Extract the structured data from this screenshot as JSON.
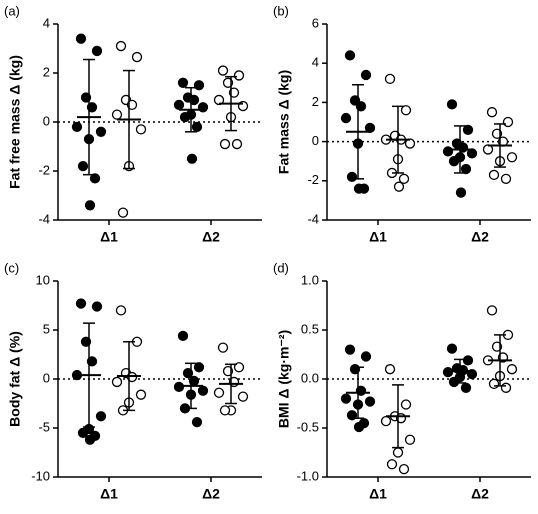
{
  "chart_data": [
    {
      "type": "dot",
      "panel_label": "(a)",
      "y_label": "Fat free mass Δ (kg)",
      "categories": [
        "Δ1",
        "Δ2"
      ],
      "ylim": [
        -4,
        4
      ],
      "yticks": [
        -4,
        -2,
        0,
        2,
        4
      ],
      "reference_line": 0,
      "series": [
        {
          "fill": "#000000",
          "values": [
            [
              3.4,
              2.9,
              1.0,
              0.6,
              -0.2,
              -0.4,
              -0.7,
              -1.8,
              -2.3,
              -3.4
            ],
            [
              1.6,
              1.5,
              1.0,
              0.9,
              0.7,
              0.6,
              0.3,
              0.2,
              -0.2,
              -1.5
            ]
          ],
          "mean": [
            0.2,
            0.5
          ],
          "sd": [
            2.35,
            0.9
          ]
        },
        {
          "fill": "#ffffff",
          "values": [
            [
              3.1,
              2.65,
              0.9,
              0.7,
              0.3,
              -0.3,
              -1.8,
              -3.7
            ],
            [
              2.1,
              1.9,
              1.6,
              1.2,
              0.9,
              0.65,
              0.2,
              -0.9,
              -0.9
            ]
          ],
          "mean": [
            0.1,
            0.75
          ],
          "sd": [
            2.0,
            1.1
          ]
        }
      ]
    },
    {
      "type": "dot",
      "panel_label": "(b)",
      "y_label": "Fat mass Δ (kg)",
      "categories": [
        "Δ1",
        "Δ2"
      ],
      "ylim": [
        -4,
        6
      ],
      "yticks": [
        -4,
        -2,
        0,
        2,
        4,
        6
      ],
      "reference_line": 0,
      "series": [
        {
          "fill": "#000000",
          "values": [
            [
              4.4,
              3.4,
              2.1,
              1.8,
              1.2,
              0.7,
              -0.1,
              -1.8,
              -2.4,
              -2.4
            ],
            [
              1.9,
              0.6,
              -0.1,
              -0.3,
              -0.5,
              -0.6,
              -0.8,
              -1.0,
              -1.4,
              -2.6
            ]
          ],
          "mean": [
            0.5,
            -0.4
          ],
          "sd": [
            2.4,
            1.2
          ]
        },
        {
          "fill": "#ffffff",
          "values": [
            [
              3.2,
              1.6,
              0.3,
              0.1,
              0.1,
              -0.1,
              -0.9,
              -1.6,
              -1.9,
              -2.3
            ],
            [
              1.5,
              1.0,
              0.4,
              0.0,
              -0.4,
              -0.8,
              -1.0,
              -1.7,
              -1.9
            ]
          ],
          "mean": [
            0.1,
            -0.2
          ],
          "sd": [
            1.7,
            1.1
          ]
        }
      ]
    },
    {
      "type": "dot",
      "panel_label": "(c)",
      "y_label": "Body fat Δ (%)",
      "categories": [
        "Δ1",
        "Δ2"
      ],
      "ylim": [
        -10,
        10
      ],
      "yticks": [
        -10,
        -5,
        0,
        5,
        10
      ],
      "reference_line": 0,
      "series": [
        {
          "fill": "#000000",
          "values": [
            [
              7.7,
              7.4,
              3.8,
              1.8,
              0.4,
              -3.8,
              -5.1,
              -5.5,
              -5.8,
              -6.2
            ],
            [
              4.4,
              1.2,
              0.6,
              -0.2,
              -0.8,
              -1.2,
              -1.6,
              -3.0,
              -4.4
            ]
          ],
          "mean": [
            0.4,
            -0.7
          ],
          "sd": [
            5.3,
            2.3
          ]
        },
        {
          "fill": "#ffffff",
          "values": [
            [
              7.0,
              3.8,
              0.6,
              0.2,
              -0.3,
              -1.6,
              -2.4,
              -3.2
            ],
            [
              3.2,
              1.2,
              0.8,
              -0.3,
              -1.4,
              -1.8,
              -3.2,
              -3.2
            ]
          ],
          "mean": [
            0.3,
            -0.5
          ],
          "sd": [
            3.5,
            2.0
          ]
        }
      ]
    },
    {
      "type": "dot",
      "panel_label": "(d)",
      "y_label": "BMI Δ (kg·m⁻²)",
      "categories": [
        "Δ1",
        "Δ2"
      ],
      "ylim": [
        -1,
        1
      ],
      "yticks": [
        {
          "value": -1,
          "label": "-1.0"
        },
        -0.5,
        {
          "value": 0,
          "label": "0.0"
        },
        0.5,
        {
          "value": 1,
          "label": "1.0"
        }
      ],
      "reference_line": 0,
      "series": [
        {
          "fill": "#000000",
          "values": [
            [
              0.3,
              0.23,
              0.1,
              -0.12,
              -0.2,
              -0.23,
              -0.26,
              -0.37,
              -0.45,
              -0.49
            ],
            [
              0.31,
              0.19,
              0.11,
              0.09,
              0.07,
              0.05,
              0.02,
              -0.03,
              -0.09
            ]
          ],
          "mean": [
            -0.14,
            0.08
          ],
          "sd": [
            0.26,
            0.12
          ]
        },
        {
          "fill": "#ffffff",
          "values": [
            [
              0.1,
              -0.26,
              -0.38,
              -0.4,
              -0.43,
              -0.62,
              -0.75,
              -0.87,
              -0.92
            ],
            [
              0.7,
              0.45,
              0.33,
              0.22,
              0.19,
              0.1,
              0.03,
              -0.05,
              -0.09
            ]
          ],
          "mean": [
            -0.38,
            0.19
          ],
          "sd": [
            0.32,
            0.26
          ]
        }
      ]
    }
  ]
}
